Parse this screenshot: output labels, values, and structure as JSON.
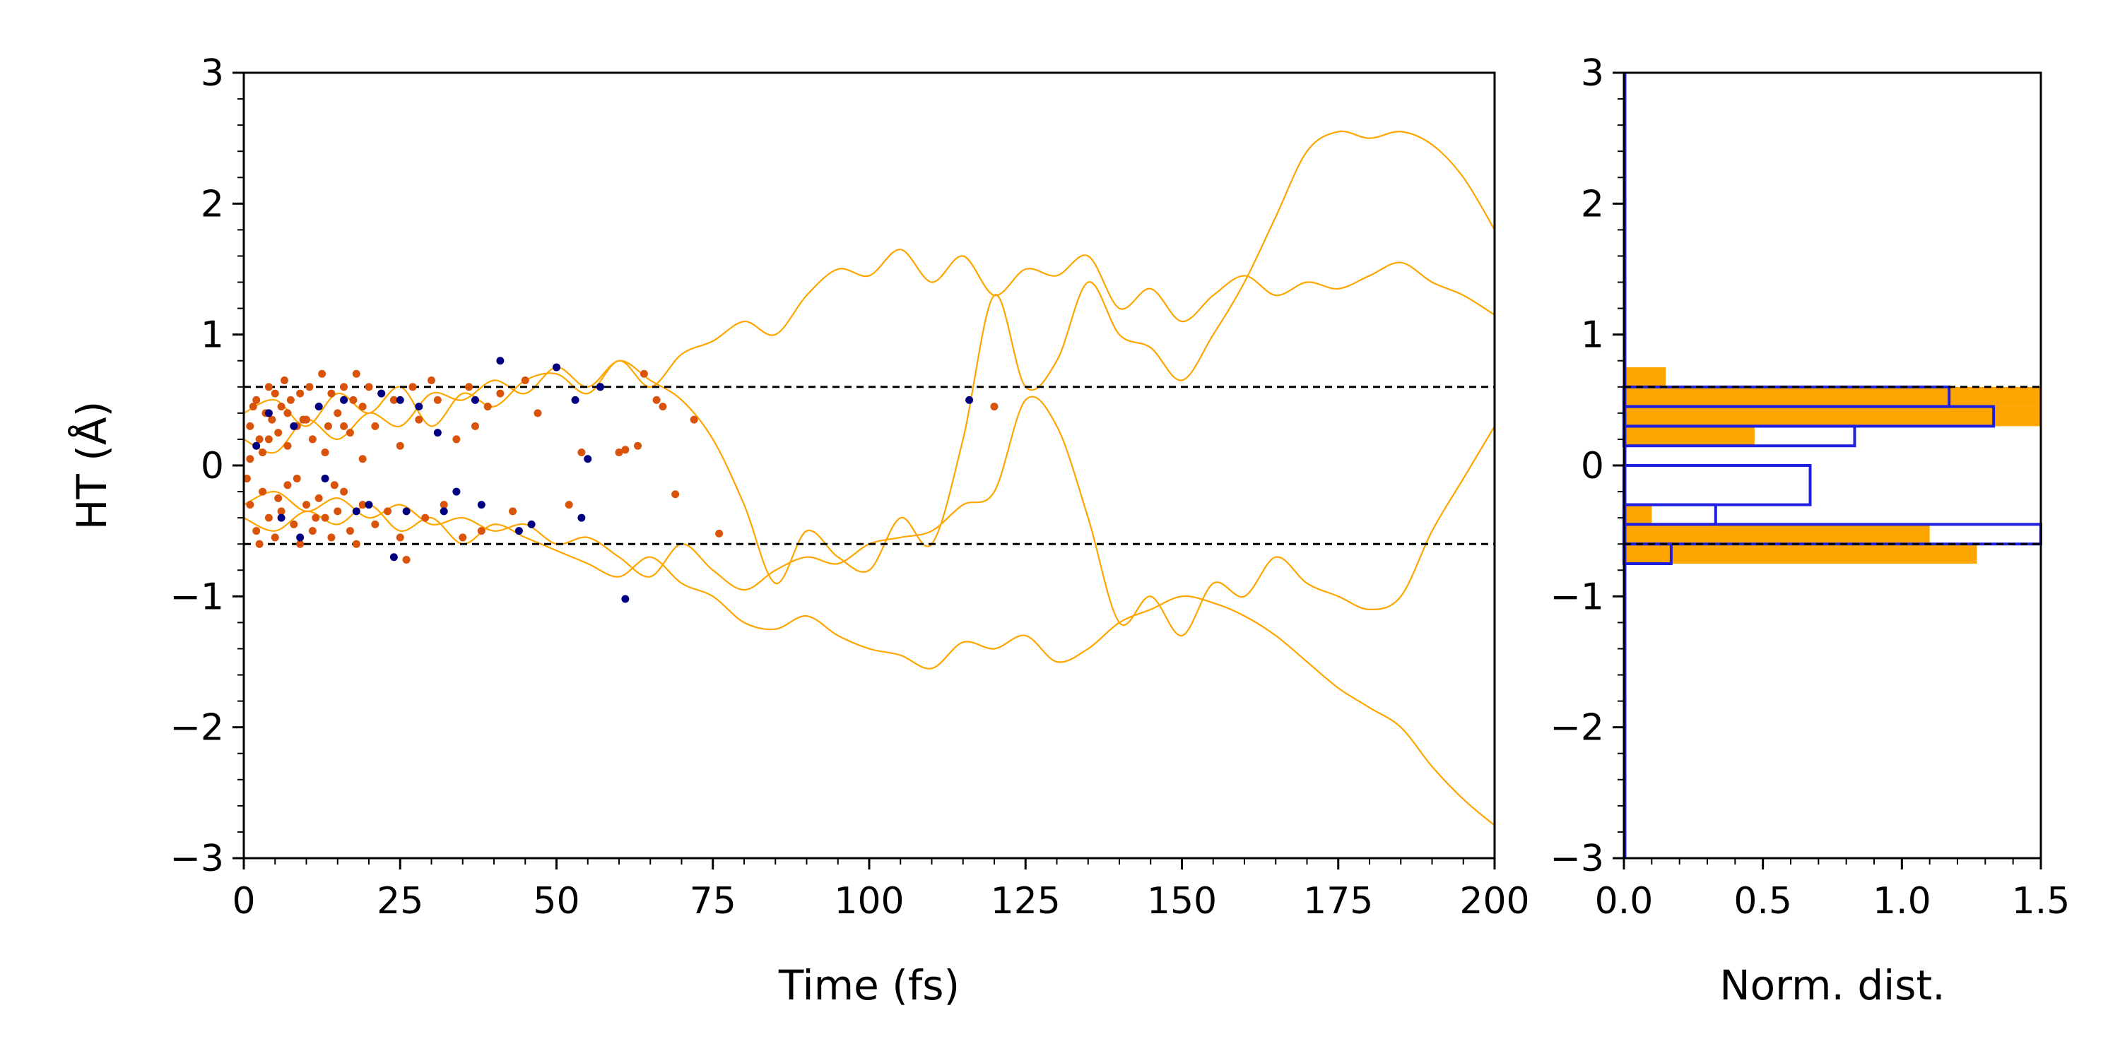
{
  "chart_data": [
    {
      "type": "scatter",
      "xlabel": "Time (fs)",
      "ylabel": "HT (Å)",
      "xlim": [
        0,
        200
      ],
      "ylim": [
        -3,
        3
      ],
      "xticks": [
        "0",
        "25",
        "50",
        "75",
        "100",
        "125",
        "150",
        "175",
        "200"
      ],
      "yticks": [
        "−3",
        "−2",
        "−1",
        "0",
        "1",
        "2",
        "3"
      ],
      "hlines": [
        0.6,
        -0.6
      ],
      "colors": {
        "traj": "#ffa500",
        "orange_pts": "#d9540a",
        "blue_pts": "#000080",
        "dashed": "#000000"
      },
      "trajectories": [
        {
          "x": [
            0,
            5,
            10,
            15,
            20,
            25,
            30,
            35,
            40,
            45,
            50,
            55,
            60,
            65,
            70,
            75,
            80,
            85,
            90,
            95,
            100,
            105,
            110,
            115,
            120,
            125,
            130,
            135,
            140,
            145,
            150,
            155,
            160,
            165,
            170,
            175,
            180,
            185,
            190,
            195,
            200
          ],
          "y": [
            0.4,
            0.5,
            0.3,
            0.55,
            0.4,
            0.6,
            0.3,
            0.55,
            0.45,
            0.65,
            0.7,
            0.55,
            0.8,
            0.6,
            0.85,
            0.95,
            1.1,
            1.0,
            1.3,
            1.5,
            1.45,
            1.65,
            1.4,
            1.6,
            1.3,
            1.5,
            1.45,
            1.6,
            1.2,
            1.35,
            1.1,
            1.3,
            1.45,
            1.3,
            1.4,
            1.35,
            1.45,
            1.55,
            1.4,
            1.3,
            1.15
          ]
        },
        {
          "x": [
            0,
            5,
            10,
            15,
            20,
            25,
            30,
            35,
            40,
            45,
            50,
            55,
            60,
            65,
            70,
            75,
            80,
            85,
            90,
            95,
            100,
            105,
            110,
            115,
            120,
            125,
            130,
            135,
            140,
            145,
            150,
            155,
            160,
            165,
            170,
            175,
            180,
            185,
            190,
            195,
            200
          ],
          "y": [
            0.2,
            0.1,
            0.35,
            0.2,
            0.4,
            0.3,
            0.55,
            0.5,
            0.65,
            0.55,
            0.75,
            0.6,
            0.8,
            0.65,
            0.5,
            0.2,
            -0.3,
            -0.9,
            -0.5,
            -0.7,
            -0.8,
            -0.4,
            -0.6,
            0.2,
            1.3,
            0.6,
            0.8,
            1.4,
            1.0,
            0.9,
            0.65,
            1.0,
            1.4,
            1.9,
            2.4,
            2.55,
            2.5,
            2.55,
            2.45,
            2.2,
            1.8
          ]
        },
        {
          "x": [
            0,
            5,
            10,
            15,
            20,
            25,
            30,
            35,
            40,
            45,
            50,
            55,
            60,
            65,
            70,
            75,
            80,
            85,
            90,
            95,
            100,
            105,
            110,
            115,
            120,
            125,
            130,
            135,
            140,
            145,
            150,
            155,
            160,
            165,
            170,
            175,
            180,
            185,
            190,
            195,
            200
          ],
          "y": [
            -0.3,
            -0.2,
            -0.35,
            -0.25,
            -0.4,
            -0.3,
            -0.45,
            -0.4,
            -0.5,
            -0.45,
            -0.6,
            -0.55,
            -0.7,
            -0.85,
            -0.6,
            -0.8,
            -0.95,
            -0.8,
            -0.7,
            -0.75,
            -0.6,
            -0.55,
            -0.5,
            -0.3,
            -0.2,
            0.5,
            0.3,
            -0.4,
            -1.2,
            -1.0,
            -1.3,
            -0.9,
            -1.0,
            -0.7,
            -0.9,
            -1.0,
            -1.1,
            -1.0,
            -0.5,
            -0.1,
            0.3
          ]
        },
        {
          "x": [
            0,
            5,
            10,
            15,
            20,
            25,
            30,
            35,
            40,
            45,
            50,
            55,
            60,
            65,
            70,
            75,
            80,
            85,
            90,
            95,
            100,
            105,
            110,
            115,
            120,
            125,
            130,
            135,
            140,
            145,
            150,
            155,
            160,
            165,
            170,
            175,
            180,
            185,
            190,
            195,
            200
          ],
          "y": [
            -0.4,
            -0.5,
            -0.35,
            -0.45,
            -0.3,
            -0.5,
            -0.4,
            -0.6,
            -0.45,
            -0.55,
            -0.65,
            -0.75,
            -0.85,
            -0.7,
            -0.9,
            -1.0,
            -1.2,
            -1.25,
            -1.15,
            -1.3,
            -1.4,
            -1.45,
            -1.55,
            -1.35,
            -1.4,
            -1.3,
            -1.5,
            -1.4,
            -1.2,
            -1.1,
            -1.0,
            -1.05,
            -1.15,
            -1.3,
            -1.5,
            -1.7,
            -1.85,
            -2.0,
            -2.3,
            -2.55,
            -2.75
          ]
        }
      ],
      "series": [
        {
          "name": "",
          "color": "#d9540a",
          "points": [
            [
              1,
              0.3
            ],
            [
              1,
              -0.3
            ],
            [
              1.5,
              0.45
            ],
            [
              2,
              0.5
            ],
            [
              2,
              -0.5
            ],
            [
              2.5,
              0.2
            ],
            [
              3,
              0.1
            ],
            [
              3,
              -0.2
            ],
            [
              3.5,
              0.4
            ],
            [
              4,
              0.6
            ],
            [
              4,
              -0.4
            ],
            [
              4.5,
              0.35
            ],
            [
              5,
              0.55
            ],
            [
              5,
              -0.55
            ],
            [
              5.5,
              0.25
            ],
            [
              6,
              0.45
            ],
            [
              6,
              -0.35
            ],
            [
              6.5,
              0.65
            ],
            [
              7,
              0.15
            ],
            [
              7,
              -0.15
            ],
            [
              7.5,
              0.5
            ],
            [
              8,
              -0.45
            ],
            [
              8.5,
              0.3
            ],
            [
              9,
              0.55
            ],
            [
              9,
              -0.6
            ],
            [
              9.5,
              0.35
            ],
            [
              10,
              -0.3
            ],
            [
              10.5,
              0.6
            ],
            [
              11,
              0.2
            ],
            [
              11,
              -0.5
            ],
            [
              12,
              0.45
            ],
            [
              12,
              -0.25
            ],
            [
              12.5,
              0.7
            ],
            [
              13,
              -0.4
            ],
            [
              13.5,
              0.3
            ],
            [
              14,
              0.55
            ],
            [
              14,
              -0.55
            ],
            [
              15,
              0.4
            ],
            [
              15,
              -0.35
            ],
            [
              16,
              0.6
            ],
            [
              16,
              -0.2
            ],
            [
              17,
              0.25
            ],
            [
              17,
              -0.5
            ],
            [
              18,
              0.7
            ],
            [
              18,
              -0.6
            ],
            [
              19,
              0.45
            ],
            [
              19,
              -0.3
            ],
            [
              20,
              0.6
            ],
            [
              21,
              0.3
            ],
            [
              21,
              -0.45
            ],
            [
              22,
              0.55
            ],
            [
              23,
              -0.35
            ],
            [
              24,
              0.5
            ],
            [
              25,
              0.15
            ],
            [
              25,
              -0.55
            ],
            [
              26,
              -0.72
            ],
            [
              27,
              0.6
            ],
            [
              28,
              0.35
            ],
            [
              29,
              -0.4
            ],
            [
              30,
              0.65
            ],
            [
              31,
              0.5
            ],
            [
              32,
              -0.3
            ],
            [
              34,
              0.2
            ],
            [
              35,
              -0.55
            ],
            [
              36,
              0.6
            ],
            [
              37,
              0.3
            ],
            [
              38,
              -0.5
            ],
            [
              39,
              0.45
            ],
            [
              41,
              0.55
            ],
            [
              43,
              -0.35
            ],
            [
              45,
              0.65
            ],
            [
              47,
              0.4
            ],
            [
              50,
              0.75
            ],
            [
              52,
              -0.3
            ],
            [
              54,
              0.1
            ],
            [
              57,
              0.6
            ],
            [
              60,
              0.1
            ],
            [
              61,
              0.12
            ],
            [
              63,
              0.15
            ],
            [
              64,
              0.7
            ],
            [
              66,
              0.5
            ],
            [
              67,
              0.45
            ],
            [
              69,
              -0.22
            ],
            [
              72,
              0.35
            ],
            [
              76,
              -0.52
            ],
            [
              120,
              0.45
            ],
            [
              0.5,
              -0.1
            ],
            [
              1,
              0.05
            ],
            [
              2.5,
              -0.6
            ],
            [
              4,
              0.2
            ],
            [
              5.5,
              -0.25
            ],
            [
              7,
              0.4
            ],
            [
              8.5,
              -0.1
            ],
            [
              10,
              0.35
            ],
            [
              11.5,
              -0.4
            ],
            [
              13,
              0.1
            ],
            [
              14.5,
              -0.15
            ],
            [
              16,
              0.3
            ],
            [
              17.5,
              0.5
            ],
            [
              19,
              0.05
            ]
          ]
        },
        {
          "name": "",
          "color": "#000080",
          "points": [
            [
              2,
              0.15
            ],
            [
              4,
              0.4
            ],
            [
              6,
              -0.4
            ],
            [
              8,
              0.3
            ],
            [
              9,
              -0.55
            ],
            [
              12,
              0.45
            ],
            [
              13,
              -0.1
            ],
            [
              16,
              0.5
            ],
            [
              18,
              -0.35
            ],
            [
              20,
              -0.3
            ],
            [
              22,
              0.55
            ],
            [
              24,
              -0.7
            ],
            [
              25,
              0.5
            ],
            [
              26,
              -0.35
            ],
            [
              28,
              0.45
            ],
            [
              31,
              0.25
            ],
            [
              32,
              -0.35
            ],
            [
              34,
              -0.2
            ],
            [
              37,
              0.5
            ],
            [
              38,
              -0.3
            ],
            [
              41,
              0.8
            ],
            [
              44,
              -0.5
            ],
            [
              46,
              -0.45
            ],
            [
              50,
              0.75
            ],
            [
              53,
              0.5
            ],
            [
              54,
              -0.4
            ],
            [
              55,
              0.05
            ],
            [
              57,
              0.6
            ],
            [
              61,
              -1.02
            ],
            [
              116,
              0.5
            ]
          ]
        }
      ]
    },
    {
      "type": "bar",
      "orientation": "horizontal",
      "xlabel": "Norm. dist.",
      "ylabel": "",
      "xlim": [
        0,
        1.5
      ],
      "ylim": [
        -3,
        3
      ],
      "xticks": [
        "0.0",
        "0.5",
        "1.0",
        "1.5"
      ],
      "yticks": [
        "−3",
        "−2",
        "−1",
        "0",
        "1",
        "2",
        "3"
      ],
      "hlines": [
        0.6,
        -0.6
      ],
      "series": [
        {
          "name": "",
          "color": "#ffa500",
          "style": "filled",
          "bins": [
            [
              0.6,
              0.75,
              0.15
            ],
            [
              0.45,
              0.6,
              1.55
            ],
            [
              0.3,
              0.45,
              1.55
            ],
            [
              0.15,
              0.3,
              0.47
            ],
            [
              -0.45,
              -0.3,
              0.1
            ],
            [
              -0.6,
              -0.45,
              1.1
            ],
            [
              -0.75,
              -0.6,
              1.27
            ]
          ]
        },
        {
          "name": "",
          "color": "#1f1fe0",
          "style": "step",
          "bins": [
            [
              0.45,
              0.6,
              1.17
            ],
            [
              0.3,
              0.45,
              1.33
            ],
            [
              0.15,
              0.3,
              0.83
            ],
            [
              0.0,
              0.15,
              0.0
            ],
            [
              -0.3,
              0.0,
              0.67
            ],
            [
              -0.45,
              -0.3,
              0.33
            ],
            [
              -0.6,
              -0.45,
              1.5
            ],
            [
              -0.75,
              -0.6,
              0.17
            ]
          ]
        }
      ]
    }
  ]
}
